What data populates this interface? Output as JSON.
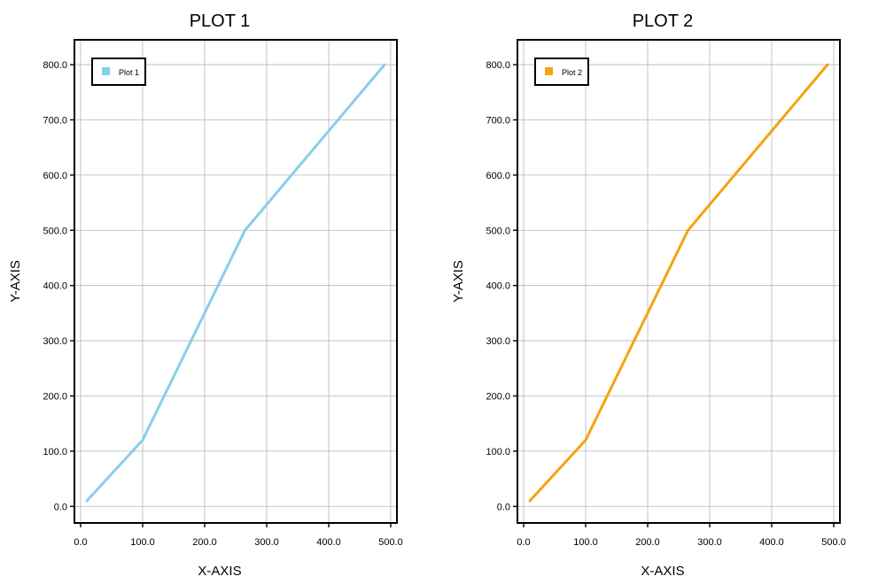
{
  "chart_data": [
    {
      "type": "line",
      "title": "PLOT 1",
      "xlabel": "X-AXIS",
      "ylabel": "Y-AXIS",
      "xlim": [
        -10,
        510
      ],
      "ylim": [
        -30,
        845
      ],
      "xticks": [
        0,
        100,
        200,
        300,
        400,
        500
      ],
      "xtick_labels": [
        "0.0",
        "100.0",
        "200.0",
        "300.0",
        "400.0",
        "500.0"
      ],
      "yticks": [
        0,
        100,
        200,
        300,
        400,
        500,
        600,
        700,
        800
      ],
      "ytick_labels": [
        "0.0",
        "100.0",
        "200.0",
        "300.0",
        "400.0",
        "500.0",
        "600.0",
        "700.0",
        "800.0"
      ],
      "grid": true,
      "legend": "top-left",
      "series": [
        {
          "name": "Plot 1",
          "color": "#87ceeb",
          "x": [
            10,
            100,
            265,
            490
          ],
          "y": [
            10,
            120,
            500,
            800
          ]
        }
      ]
    },
    {
      "type": "line",
      "title": "PLOT 2",
      "xlabel": "X-AXIS",
      "ylabel": "Y-AXIS",
      "xlim": [
        -10,
        510
      ],
      "ylim": [
        -30,
        845
      ],
      "xticks": [
        0,
        100,
        200,
        300,
        400,
        500
      ],
      "xtick_labels": [
        "0.0",
        "100.0",
        "200.0",
        "300.0",
        "400.0",
        "500.0"
      ],
      "yticks": [
        0,
        100,
        200,
        300,
        400,
        500,
        600,
        700,
        800
      ],
      "ytick_labels": [
        "0.0",
        "100.0",
        "200.0",
        "300.0",
        "400.0",
        "500.0",
        "600.0",
        "700.0",
        "800.0"
      ],
      "grid": true,
      "legend": "top-left",
      "series": [
        {
          "name": "Plot 2",
          "color": "#f5a30e",
          "x": [
            10,
            100,
            265,
            490
          ],
          "y": [
            10,
            120,
            500,
            800
          ]
        }
      ]
    }
  ]
}
